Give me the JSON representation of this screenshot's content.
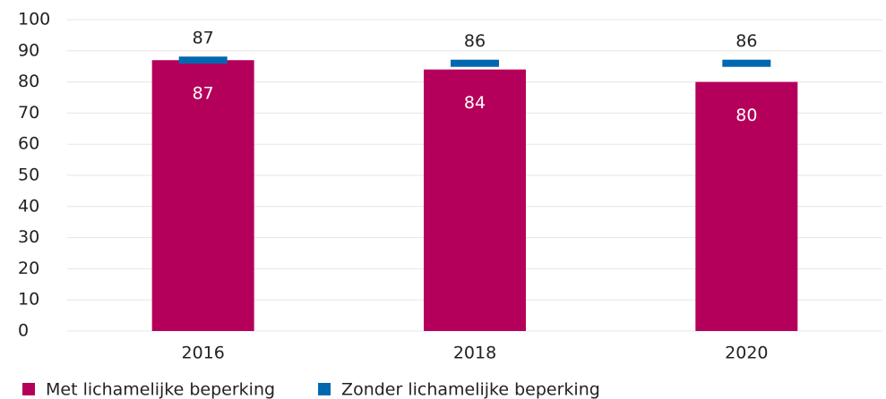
{
  "chart_data": {
    "type": "bar",
    "categories": [
      "2016",
      "2018",
      "2020"
    ],
    "series": [
      {
        "name": "Met lichamelijke beperking",
        "color": "#b5005b",
        "values": [
          87,
          84,
          80
        ]
      },
      {
        "name": "Zonder lichamelijke beperking",
        "color": "#0068b0",
        "values": [
          87,
          86,
          86
        ],
        "marker": "dash"
      }
    ],
    "ylim": [
      0,
      100
    ],
    "yticks": [
      0,
      10,
      20,
      30,
      40,
      50,
      60,
      70,
      80,
      90,
      100
    ],
    "grid": true,
    "legend": "bottom-left"
  }
}
